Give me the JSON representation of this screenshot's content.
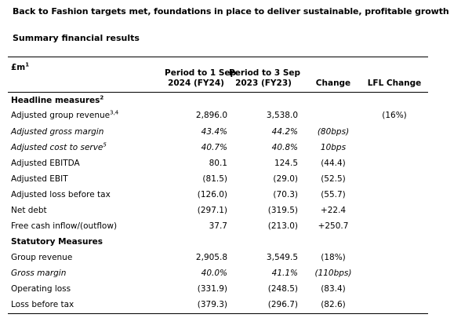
{
  "headline": "Back to Fashion targets met, foundations in place to deliver sustainable, profitable growth",
  "subtitle": "Summary financial results",
  "table": {
    "unit_label": "£m",
    "unit_sup": "1",
    "col_fy24_line1": "Period to 1 Sep",
    "col_fy24_line2": "2024 (FY24)",
    "col_fy23_line1": "Period to 3 Sep",
    "col_fy23_line2": "2023 (FY23)",
    "col_change": "Change",
    "col_lfl": "LFL Change",
    "section_headline": "Headline measures",
    "section_headline_sup": "2",
    "section_statutory": "Statutory Measures",
    "rows": [
      {
        "label": "Adjusted group revenue",
        "sup": "3,4",
        "fy24": "2,896.0",
        "fy23": "3,538.0",
        "change": "",
        "lfl": "(16%)"
      },
      {
        "label": "Adjusted gross margin",
        "sup": "",
        "fy24": "43.4%",
        "fy23": "44.2%",
        "change": "(80bps)",
        "lfl": ""
      },
      {
        "label": "Adjusted cost to serve",
        "sup": "5",
        "fy24": "40.7%",
        "fy23": "40.8%",
        "change": "10bps",
        "lfl": ""
      },
      {
        "label": "Adjusted EBITDA",
        "sup": "",
        "fy24": "80.1",
        "fy23": "124.5",
        "change": "(44.4)",
        "lfl": ""
      },
      {
        "label": "Adjusted EBIT",
        "sup": "",
        "fy24": "(81.5)",
        "fy23": "(29.0)",
        "change": "(52.5)",
        "lfl": ""
      },
      {
        "label": "Adjusted loss before tax",
        "sup": "",
        "fy24": "(126.0)",
        "fy23": "(70.3)",
        "change": "(55.7)",
        "lfl": ""
      },
      {
        "label": "Net debt",
        "sup": "",
        "fy24": "(297.1)",
        "fy23": "(319.5)",
        "change": "+22.4",
        "lfl": ""
      },
      {
        "label": "Free cash inflow/(outflow)",
        "sup": "",
        "fy24": "37.7",
        "fy23": "(213.0)",
        "change": "+250.7",
        "lfl": ""
      },
      {
        "label": "Group revenue",
        "sup": "",
        "fy24": "2,905.8",
        "fy23": "3,549.5",
        "change": "(18%)",
        "lfl": ""
      },
      {
        "label": "Gross margin",
        "sup": "",
        "fy24": "40.0%",
        "fy23": "41.1%",
        "change": "(110bps)",
        "lfl": ""
      },
      {
        "label": "Operating loss",
        "sup": "",
        "fy24": "(331.9)",
        "fy23": "(248.5)",
        "change": "(83.4)",
        "lfl": ""
      },
      {
        "label": "Loss before tax",
        "sup": "",
        "fy24": "(379.3)",
        "fy23": "(296.7)",
        "change": "(82.6)",
        "lfl": ""
      }
    ]
  }
}
